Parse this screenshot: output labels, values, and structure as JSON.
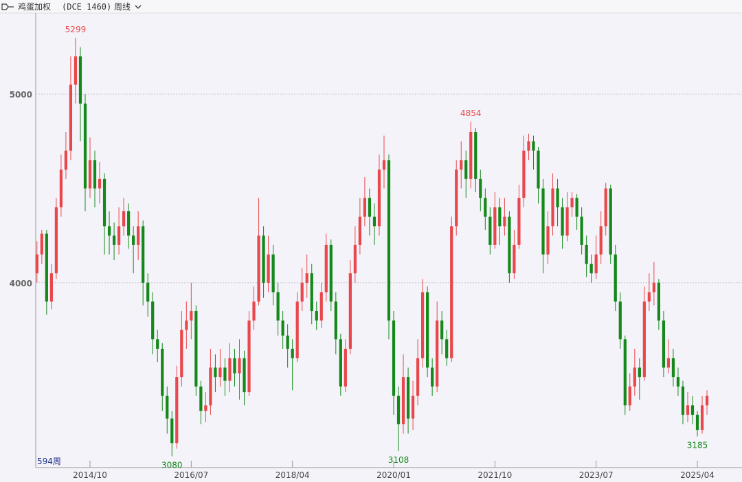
{
  "header": {
    "title": "鸡蛋加权",
    "code": "(DCE 1460)",
    "period": "周线"
  },
  "chart_data": {
    "type": "candlestick",
    "bar_count_label": "594周",
    "up_color": "#e8474b",
    "down_color": "#14881a",
    "ylim": [
      3020,
      5430
    ],
    "yticks": [
      4000,
      5000
    ],
    "grid": true,
    "xlim": [
      -0.26,
      139.42
    ],
    "xticks": [
      {
        "value": 11,
        "label": "2014/10"
      },
      {
        "value": 32,
        "label": "2016/07"
      },
      {
        "value": 53,
        "label": "2018/04"
      },
      {
        "value": 74,
        "label": "2020/01"
      },
      {
        "value": 95,
        "label": "2021/10"
      },
      {
        "value": 116,
        "label": "2023/07"
      },
      {
        "value": 137,
        "label": "2025/04"
      }
    ],
    "annotations": [
      5299,
      3080,
      3108,
      4854,
      3185
    ],
    "ohlc": [
      [
        4050,
        4220,
        4000,
        4150
      ],
      [
        4150,
        4280,
        4100,
        4260
      ],
      [
        4260,
        4280,
        3830,
        3900
      ],
      [
        3900,
        4100,
        3860,
        4050
      ],
      [
        4050,
        4450,
        4020,
        4400
      ],
      [
        4400,
        4680,
        4350,
        4600
      ],
      [
        4600,
        4800,
        4550,
        4700
      ],
      [
        4700,
        5200,
        4650,
        5050
      ],
      [
        5050,
        5299,
        4950,
        5200
      ],
      [
        5200,
        5250,
        4750,
        4950
      ],
      [
        4950,
        5000,
        4380,
        4500
      ],
      [
        4500,
        4770,
        4450,
        4650
      ],
      [
        4650,
        4700,
        4400,
        4500
      ],
      [
        4500,
        4640,
        4420,
        4550
      ],
      [
        4550,
        4580,
        4150,
        4300
      ],
      [
        4300,
        4380,
        4150,
        4250
      ],
      [
        4250,
        4320,
        4120,
        4200
      ],
      [
        4200,
        4400,
        4150,
        4300
      ],
      [
        4300,
        4450,
        4250,
        4380
      ],
      [
        4380,
        4420,
        4180,
        4250
      ],
      [
        4250,
        4300,
        4050,
        4200
      ],
      [
        4200,
        4380,
        4120,
        4300
      ],
      [
        4300,
        4330,
        3880,
        4000
      ],
      [
        4000,
        4050,
        3820,
        3900
      ],
      [
        3900,
        3950,
        3620,
        3700
      ],
      [
        3700,
        3750,
        3580,
        3650
      ],
      [
        3650,
        3680,
        3320,
        3400
      ],
      [
        3400,
        3450,
        3200,
        3280
      ],
      [
        3280,
        3320,
        3080,
        3150
      ],
      [
        3150,
        3560,
        3120,
        3500
      ],
      [
        3500,
        3850,
        3450,
        3750
      ],
      [
        3750,
        3900,
        3650,
        3800
      ],
      [
        3800,
        4000,
        3700,
        3850
      ],
      [
        3850,
        3880,
        3400,
        3450
      ],
      [
        3450,
        3480,
        3250,
        3320
      ],
      [
        3320,
        3420,
        3260,
        3350
      ],
      [
        3350,
        3650,
        3300,
        3550
      ],
      [
        3550,
        3620,
        3420,
        3500
      ],
      [
        3500,
        3650,
        3450,
        3550
      ],
      [
        3550,
        3600,
        3400,
        3480
      ],
      [
        3480,
        3680,
        3420,
        3600
      ],
      [
        3600,
        3650,
        3450,
        3520
      ],
      [
        3520,
        3700,
        3380,
        3600
      ],
      [
        3600,
        3640,
        3350,
        3420
      ],
      [
        3420,
        3850,
        3400,
        3800
      ],
      [
        3800,
        3980,
        3750,
        3900
      ],
      [
        3900,
        4450,
        3880,
        4250
      ],
      [
        4250,
        4300,
        3920,
        4000
      ],
      [
        4000,
        4250,
        3950,
        4150
      ],
      [
        4150,
        4200,
        3880,
        3950
      ],
      [
        3950,
        4000,
        3720,
        3800
      ],
      [
        3800,
        3850,
        3650,
        3720
      ],
      [
        3720,
        3780,
        3550,
        3650
      ],
      [
        3650,
        3700,
        3430,
        3600
      ],
      [
        3600,
        3950,
        3580,
        3900
      ],
      [
        3900,
        4080,
        3850,
        4000
      ],
      [
        4000,
        4150,
        3920,
        4050
      ],
      [
        4050,
        4100,
        3780,
        3850
      ],
      [
        3850,
        3900,
        3750,
        3800
      ],
      [
        3800,
        4000,
        3760,
        3950
      ],
      [
        3950,
        4260,
        3900,
        4200
      ],
      [
        4200,
        4230,
        3850,
        3900
      ],
      [
        3900,
        3950,
        3620,
        3700
      ],
      [
        3700,
        3730,
        3400,
        3450
      ],
      [
        3450,
        3700,
        3420,
        3650
      ],
      [
        3650,
        4120,
        3620,
        4050
      ],
      [
        4050,
        4300,
        4000,
        4200
      ],
      [
        4200,
        4450,
        4150,
        4350
      ],
      [
        4350,
        4560,
        4300,
        4450
      ],
      [
        4450,
        4500,
        4250,
        4350
      ],
      [
        4350,
        4420,
        4200,
        4300
      ],
      [
        4300,
        4680,
        4250,
        4600
      ],
      [
        4600,
        4780,
        4500,
        4650
      ],
      [
        4650,
        4680,
        3700,
        3800
      ],
      [
        3800,
        3850,
        3300,
        3400
      ],
      [
        3400,
        3450,
        3108,
        3250
      ],
      [
        3250,
        3620,
        3200,
        3500
      ],
      [
        3500,
        3550,
        3200,
        3280
      ],
      [
        3280,
        3480,
        3220,
        3400
      ],
      [
        3400,
        3700,
        3350,
        3600
      ],
      [
        3600,
        4020,
        3550,
        3950
      ],
      [
        3950,
        3980,
        3500,
        3550
      ],
      [
        3550,
        3600,
        3400,
        3450
      ],
      [
        3450,
        3900,
        3420,
        3800
      ],
      [
        3800,
        3850,
        3620,
        3700
      ],
      [
        3700,
        3750,
        3560,
        3600
      ],
      [
        3600,
        4350,
        3580,
        4300
      ],
      [
        4300,
        4650,
        4250,
        4600
      ],
      [
        4600,
        4750,
        4500,
        4650
      ],
      [
        4650,
        4700,
        4450,
        4550
      ],
      [
        4550,
        4854,
        4500,
        4800
      ],
      [
        4800,
        4820,
        4480,
        4550
      ],
      [
        4550,
        4600,
        4380,
        4450
      ],
      [
        4450,
        4500,
        4280,
        4350
      ],
      [
        4350,
        4400,
        4150,
        4200
      ],
      [
        4200,
        4480,
        4180,
        4400
      ],
      [
        4400,
        4450,
        4200,
        4300
      ],
      [
        4300,
        4450,
        4250,
        4350
      ],
      [
        4350,
        4380,
        4000,
        4050
      ],
      [
        4050,
        4280,
        4020,
        4200
      ],
      [
        4200,
        4520,
        4180,
        4450
      ],
      [
        4450,
        4780,
        4400,
        4700
      ],
      [
        4700,
        4790,
        4650,
        4750
      ],
      [
        4750,
        4780,
        4600,
        4700
      ],
      [
        4700,
        4720,
        4420,
        4500
      ],
      [
        4500,
        4550,
        4050,
        4150
      ],
      [
        4150,
        4380,
        4100,
        4300
      ],
      [
        4300,
        4580,
        4250,
        4500
      ],
      [
        4500,
        4550,
        4300,
        4400
      ],
      [
        4400,
        4450,
        4180,
        4250
      ],
      [
        4250,
        4480,
        4220,
        4400
      ],
      [
        4400,
        4480,
        4350,
        4450
      ],
      [
        4450,
        4470,
        4280,
        4350
      ],
      [
        4350,
        4400,
        4150,
        4200
      ],
      [
        4200,
        4250,
        4030,
        4100
      ],
      [
        4100,
        4150,
        4000,
        4050
      ],
      [
        4050,
        4250,
        4020,
        4150
      ],
      [
        4150,
        4380,
        4100,
        4300
      ],
      [
        4300,
        4530,
        4250,
        4500
      ],
      [
        4500,
        4520,
        4100,
        4150
      ],
      [
        4150,
        4200,
        3850,
        3900
      ],
      [
        3900,
        3950,
        3650,
        3700
      ],
      [
        3700,
        3720,
        3300,
        3350
      ],
      [
        3350,
        3520,
        3320,
        3450
      ],
      [
        3450,
        3650,
        3400,
        3550
      ],
      [
        3550,
        3600,
        3380,
        3500
      ],
      [
        3500,
        3980,
        3480,
        3900
      ],
      [
        3900,
        4050,
        3850,
        3950
      ],
      [
        3950,
        4110,
        3880,
        4000
      ],
      [
        4000,
        4020,
        3750,
        3800
      ],
      [
        3800,
        3850,
        3500,
        3550
      ],
      [
        3550,
        3700,
        3520,
        3600
      ],
      [
        3600,
        3650,
        3450,
        3500
      ],
      [
        3500,
        3550,
        3400,
        3450
      ],
      [
        3450,
        3480,
        3250,
        3300
      ],
      [
        3300,
        3420,
        3260,
        3350
      ],
      [
        3350,
        3400,
        3250,
        3300
      ],
      [
        3300,
        3320,
        3185,
        3220
      ],
      [
        3220,
        3400,
        3200,
        3350
      ],
      [
        3350,
        3430,
        3300,
        3400
      ]
    ]
  }
}
